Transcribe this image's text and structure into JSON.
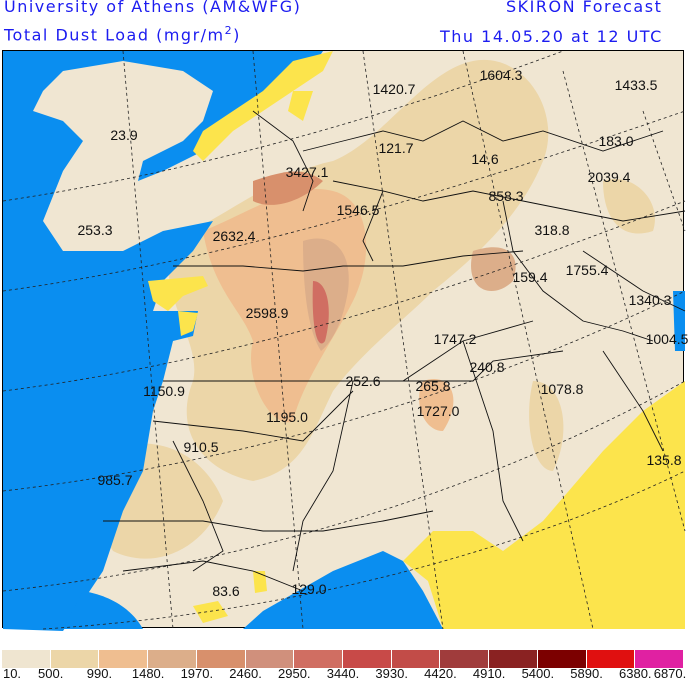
{
  "header": {
    "institution": "University of Athens (AM&WFG)",
    "product": "SKIRON Forecast",
    "variable": "Total Dust Load (mgr/m",
    "variable_sup": "2",
    "variable_end": ")",
    "valid_time": "Thu 14.05.20 at 12 UTC"
  },
  "colors": {
    "title_text": "#1c1cf0",
    "sea": "#0a8ef0",
    "below_threshold": "#fce44c",
    "land_base": "#f0e6d2"
  },
  "map": {
    "labels": [
      "1420.7",
      "1604.3",
      "1433.5",
      "23.9",
      "121.7",
      "14.6",
      "183.0",
      "3427.1",
      "2039.4",
      "858.3",
      "1546.5",
      "253.3",
      "2632.4",
      "318.8",
      "159.4",
      "1755.4",
      "1340.3",
      "2598.9",
      "1004.5",
      "1747.2",
      "240.8",
      "1150.9",
      "252.6",
      "265.8",
      "1078.8",
      "1195.0",
      "1727.0",
      "910.5",
      "135.8",
      "985.7",
      "83.6",
      "129.0"
    ]
  },
  "legend": {
    "ticks": [
      "10.",
      "500.",
      "990.",
      "1480.",
      "1970.",
      "2460.",
      "2950.",
      "3440.",
      "3930.",
      "4420.",
      "4910.",
      "5400.",
      "5890.",
      "6380.",
      "6870."
    ],
    "colors": [
      "#efe5d0",
      "#ecd6a8",
      "#efbe90",
      "#dcae8a",
      "#d8906c",
      "#d0907c",
      "#d06e62",
      "#c84a48",
      "#c24c48",
      "#a03c3c",
      "#8a2222",
      "#7c0000",
      "#e01010",
      "#e021a2"
    ]
  }
}
